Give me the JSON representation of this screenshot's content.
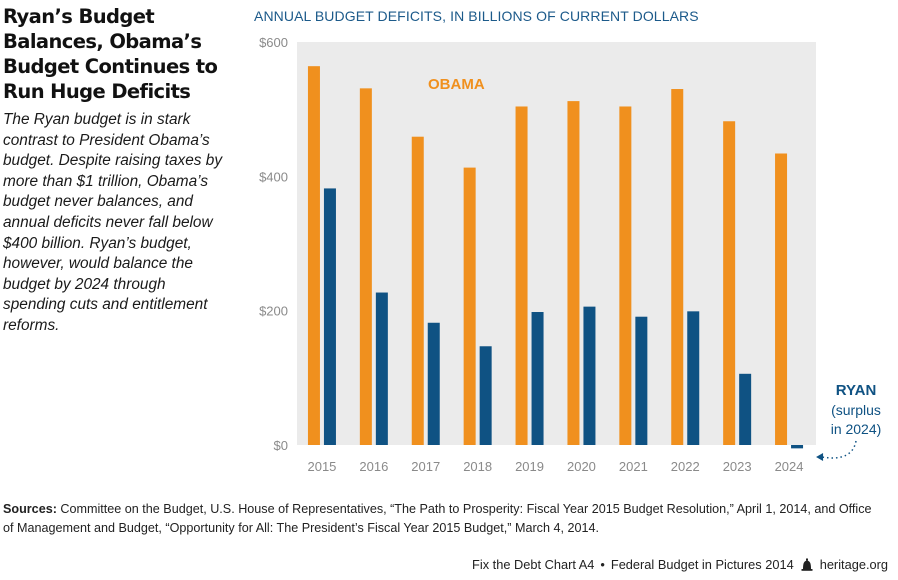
{
  "headline": "Ryan’s Budget Balances, Obama’s Budget Continues to Run Huge Deficits",
  "description": "The Ryan budget is in stark contrast to President Obama’s budget. Despite raising taxes by more than $1 trillion, Obama’s budget never balances, and annual deficits never fall below $400 billion. Ryan’s budget, however, would balance the budget by 2024 through spending cuts and entitlement reforms.",
  "chart_data": {
    "type": "bar",
    "title": "ANNUAL BUDGET DEFICITS, IN BILLIONS OF CURRENT DOLLARS",
    "categories": [
      "2015",
      "2016",
      "2017",
      "2018",
      "2019",
      "2020",
      "2021",
      "2022",
      "2023",
      "2024"
    ],
    "series": [
      {
        "name": "OBAMA",
        "color": "#f0901e",
        "values": [
          564,
          531,
          459,
          413,
          504,
          512,
          504,
          530,
          482,
          434
        ]
      },
      {
        "name": "RYAN",
        "color": "#0f5283",
        "values": [
          382,
          227,
          182,
          147,
          198,
          206,
          191,
          199,
          106,
          -5
        ]
      }
    ],
    "ylim": [
      0,
      600
    ],
    "yticks": [
      0,
      200,
      400,
      600
    ],
    "ytick_labels": [
      "$0",
      "$200",
      "$400",
      "$600"
    ],
    "grid": false,
    "plot_background": "#ebebeb",
    "legend_labels": {
      "obama": "OBAMA",
      "ryan": "RYAN",
      "ryan_note_line1": "(surplus",
      "ryan_note_line2": "in 2024)"
    }
  },
  "sources": {
    "label": "Sources:",
    "text": "Committee on the Budget, U.S. House of Representatives, “The Path to Prosperity: Fiscal Year 2015 Budget Resolution,” April 1, 2014, and Office of Management and Budget, “Opportunity for All: The President’s Fiscal Year 2015 Budget,” March 4, 2014."
  },
  "footer": {
    "chart_id": "Fix the Debt Chart A4",
    "separator": "•",
    "publication": "Federal Budget in Pictures 2014",
    "site": "heritage.org"
  }
}
